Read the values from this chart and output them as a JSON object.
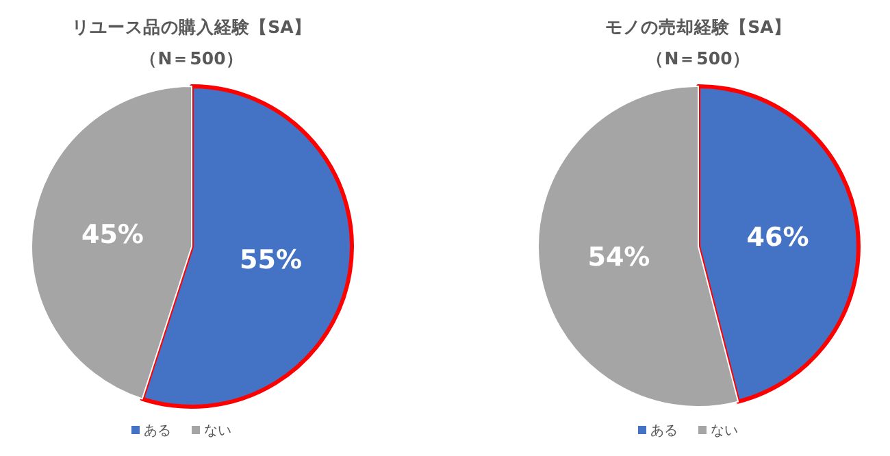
{
  "chart_data": [
    {
      "type": "pie",
      "title": "リユース品の購入経験【SA】",
      "subtitle": "（N＝500）",
      "categories": [
        "ある",
        "ない"
      ],
      "values": [
        55,
        45
      ],
      "colors": [
        "#4472c4",
        "#a5a5a5"
      ],
      "value_labels": [
        "55%",
        "45%"
      ],
      "legend": "bottom"
    },
    {
      "type": "pie",
      "title": "モノの売却経験【SA】",
      "subtitle": "（N＝500）",
      "categories": [
        "ある",
        "ない"
      ],
      "values": [
        46,
        54
      ],
      "colors": [
        "#4472c4",
        "#a5a5a5"
      ],
      "value_labels": [
        "46%",
        "54%"
      ],
      "legend": "bottom"
    }
  ]
}
